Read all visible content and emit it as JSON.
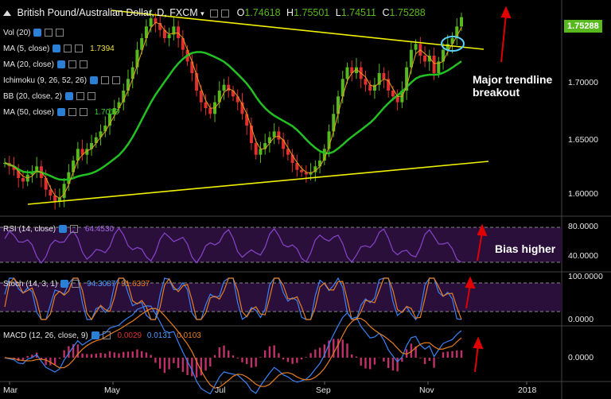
{
  "header": {
    "symbol": "British Pound/Australian Dollar, D, FXCM",
    "open_label": "O",
    "open": "1.74618",
    "high_label": "H",
    "high": "1.75501",
    "low_label": "L",
    "low": "1.74511",
    "close_label": "C",
    "close": "1.75288"
  },
  "price_tag": "1.75288",
  "indicators": [
    {
      "label": "Vol (20)",
      "value": ""
    },
    {
      "label": "MA (5, close)",
      "value": "1.7394"
    },
    {
      "label": "MA (20, close)",
      "value": ""
    },
    {
      "label": "Ichimoku (9, 26, 52, 26)",
      "value": ""
    },
    {
      "label": "BB (20, close, 2)",
      "value": ""
    },
    {
      "label": "MA (50, close)",
      "value": "1.7013"
    }
  ],
  "indicator_values_colors": {
    "ma5": "#f0e040",
    "ma50": "#2ecc2e"
  },
  "price_axis": [
    "1.70000",
    "1.65000",
    "1.60000"
  ],
  "rsi": {
    "label": "RSI (14, close)",
    "value": "64.4530",
    "axis": [
      "80.0000",
      "40.0000"
    ]
  },
  "stoch": {
    "label": "Stoch (14, 3, 1)",
    "k": "94.3087",
    "d": "91.6337",
    "axis": [
      "100.0000",
      "0.0000"
    ]
  },
  "macd": {
    "label": "MACD (12, 26, close, 9)",
    "hist": "0.0029",
    "macd": "0.0131",
    "signal": "0.0103",
    "axis": [
      "0.0000"
    ]
  },
  "time_axis": [
    "Mar",
    "May",
    "Jul",
    "Sep",
    "Nov",
    "2018"
  ],
  "annotations": {
    "breakout_line1": "Major trendline",
    "breakout_line2": "breakout",
    "bias": "Bias higher"
  },
  "colors": {
    "up": "#58b91e",
    "down": "#e03030",
    "ma50": "#22c022",
    "ma5": "#e8a020",
    "trendline": "#f0f000",
    "arrow": "#e00000",
    "rsi": "#8844cc",
    "stoch_k": "#3b82f6",
    "stoch_d": "#e67e22",
    "macd": "#3b82f6",
    "signal": "#e67e22"
  },
  "chart_data": {
    "type": "candlestick",
    "price_range": [
      1.585,
      1.765
    ],
    "closes": [
      1.628,
      1.625,
      1.622,
      1.615,
      1.612,
      1.618,
      1.62,
      1.625,
      1.615,
      1.605,
      1.6,
      1.595,
      1.598,
      1.61,
      1.62,
      1.63,
      1.64,
      1.635,
      1.64,
      1.645,
      1.65,
      1.655,
      1.66,
      1.67,
      1.675,
      1.68,
      1.69,
      1.7,
      1.71,
      1.725,
      1.735,
      1.745,
      1.752,
      1.748,
      1.742,
      1.735,
      1.738,
      1.745,
      1.735,
      1.725,
      1.715,
      1.705,
      1.69,
      1.68,
      1.675,
      1.67,
      1.68,
      1.69,
      1.695,
      1.69,
      1.685,
      1.68,
      1.67,
      1.66,
      1.645,
      1.635,
      1.64,
      1.645,
      1.65,
      1.655,
      1.648,
      1.64,
      1.635,
      1.628,
      1.622,
      1.62,
      1.618,
      1.62,
      1.625,
      1.63,
      1.64,
      1.655,
      1.67,
      1.685,
      1.7,
      1.71,
      1.705,
      1.71,
      1.7,
      1.695,
      1.69,
      1.695,
      1.705,
      1.7,
      1.69,
      1.685,
      1.68,
      1.69,
      1.71,
      1.725,
      1.73,
      1.72,
      1.715,
      1.72,
      1.705,
      1.715,
      1.725,
      1.73,
      1.735,
      1.745,
      1.753
    ]
  }
}
